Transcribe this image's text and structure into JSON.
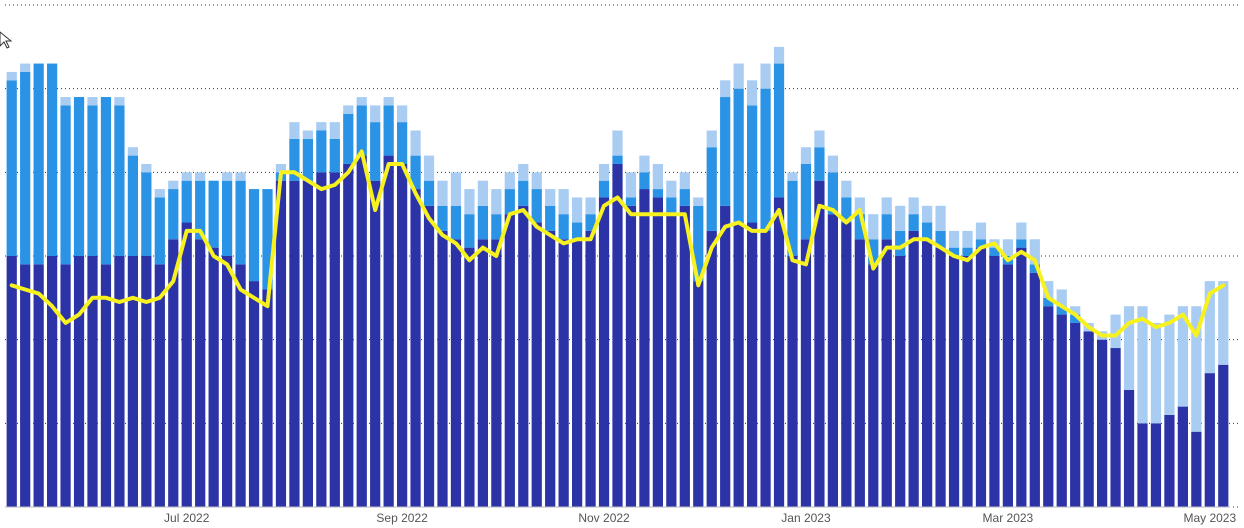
{
  "chart_data": {
    "type": "bar",
    "stacked": true,
    "categories": [
      null,
      null,
      null,
      null,
      null,
      null,
      null,
      null,
      null,
      null,
      null,
      null,
      null,
      "Jul 2022",
      null,
      null,
      null,
      null,
      null,
      null,
      null,
      null,
      null,
      null,
      null,
      null,
      null,
      null,
      null,
      "Sep 2022",
      null,
      null,
      null,
      null,
      null,
      null,
      null,
      null,
      null,
      null,
      null,
      null,
      null,
      null,
      "Nov 2022",
      null,
      null,
      null,
      null,
      null,
      null,
      null,
      null,
      null,
      null,
      null,
      null,
      null,
      null,
      "Jan 2023",
      null,
      null,
      null,
      null,
      null,
      null,
      null,
      null,
      null,
      null,
      null,
      null,
      null,
      null,
      "Mar 2023",
      null,
      null,
      null,
      null,
      null,
      null,
      null,
      null,
      null,
      null,
      null,
      null,
      null,
      null,
      "May 2023",
      null
    ],
    "series": [
      {
        "color": "#2c33a6",
        "values": [
          3.0,
          2.9,
          2.9,
          3.0,
          2.9,
          3.0,
          3.0,
          2.9,
          3.0,
          3.0,
          3.0,
          2.9,
          3.2,
          3.4,
          3.2,
          3.1,
          3.0,
          2.9,
          2.7,
          2.6,
          3.9,
          3.9,
          3.9,
          4.0,
          4.0,
          4.1,
          4.2,
          3.9,
          4.2,
          4.1,
          3.8,
          3.6,
          3.3,
          3.2,
          3.1,
          3.2,
          3.2,
          3.5,
          3.6,
          3.4,
          3.3,
          3.2,
          3.2,
          3.3,
          3.7,
          4.1,
          3.6,
          3.8,
          3.7,
          3.5,
          3.6,
          2.7,
          3.3,
          3.6,
          3.4,
          3.4,
          3.3,
          3.7,
          3.0,
          3.2,
          3.9,
          3.5,
          3.4,
          3.2,
          2.9,
          3.2,
          3.0,
          3.3,
          3.2,
          3.1,
          3.0,
          3.0,
          3.1,
          3.0,
          2.9,
          3.1,
          2.8,
          2.4,
          2.3,
          2.2,
          2.1,
          2.0,
          1.9,
          1.4,
          1.0,
          1.0,
          1.1,
          1.2,
          0.9,
          1.6,
          1.7
        ]
      },
      {
        "color": "#2a93e6",
        "values": [
          2.1,
          2.3,
          2.4,
          2.3,
          1.9,
          1.9,
          1.8,
          2.0,
          1.8,
          1.2,
          1.0,
          0.8,
          0.6,
          0.5,
          0.7,
          0.8,
          0.9,
          1.0,
          1.1,
          1.2,
          0.1,
          0.5,
          0.5,
          0.5,
          0.4,
          0.6,
          0.6,
          0.7,
          0.6,
          0.5,
          0.4,
          0.3,
          0.3,
          0.4,
          0.4,
          0.4,
          0.3,
          0.3,
          0.3,
          0.4,
          0.3,
          0.3,
          0.2,
          0.2,
          0.2,
          0.1,
          0.1,
          0.2,
          0.1,
          0.2,
          0.2,
          0.9,
          1.0,
          1.3,
          1.6,
          1.4,
          1.7,
          1.6,
          0.9,
          0.9,
          0.4,
          0.5,
          0.3,
          0.3,
          0.3,
          0.3,
          0.3,
          0.2,
          0.2,
          0.2,
          0.1,
          0.1,
          0.1,
          0.1,
          0.1,
          0.1,
          0.1,
          0.1,
          0.1,
          0.1,
          0.0,
          0.0,
          0.0,
          0.0,
          0.0,
          0.0,
          0.0,
          0.0,
          0.0,
          0.0,
          0.0
        ]
      },
      {
        "color": "#a9cdf2",
        "values": [
          0.1,
          0.1,
          0.0,
          0.0,
          0.1,
          0.0,
          0.1,
          0.0,
          0.1,
          0.1,
          0.1,
          0.1,
          0.1,
          0.1,
          0.1,
          0.0,
          0.1,
          0.1,
          0.0,
          0.0,
          0.1,
          0.2,
          0.1,
          0.1,
          0.2,
          0.1,
          0.1,
          0.2,
          0.1,
          0.2,
          0.3,
          0.3,
          0.3,
          0.4,
          0.3,
          0.3,
          0.3,
          0.2,
          0.2,
          0.2,
          0.2,
          0.3,
          0.3,
          0.2,
          0.2,
          0.3,
          0.3,
          0.2,
          0.3,
          0.2,
          0.2,
          0.1,
          0.2,
          0.2,
          0.3,
          0.3,
          0.3,
          0.2,
          0.1,
          0.2,
          0.2,
          0.2,
          0.2,
          0.2,
          0.3,
          0.2,
          0.3,
          0.2,
          0.2,
          0.3,
          0.2,
          0.2,
          0.2,
          0.1,
          0.2,
          0.2,
          0.3,
          0.2,
          0.2,
          0.1,
          0.1,
          0.1,
          0.4,
          1.0,
          1.4,
          1.2,
          1.2,
          1.2,
          1.5,
          1.1,
          1.0
        ]
      }
    ],
    "line": {
      "color": "#f7f21f",
      "values": [
        2.65,
        2.6,
        2.55,
        2.4,
        2.2,
        2.3,
        2.5,
        2.5,
        2.45,
        2.5,
        2.45,
        2.5,
        2.7,
        3.3,
        3.3,
        3.0,
        2.9,
        2.6,
        2.5,
        2.4,
        4.0,
        4.0,
        3.9,
        3.8,
        3.85,
        4.0,
        4.25,
        3.55,
        4.1,
        4.1,
        3.75,
        3.45,
        3.25,
        3.15,
        2.95,
        3.1,
        3.0,
        3.5,
        3.55,
        3.35,
        3.25,
        3.15,
        3.2,
        3.2,
        3.6,
        3.7,
        3.5,
        3.5,
        3.5,
        3.5,
        3.5,
        2.65,
        3.1,
        3.35,
        3.4,
        3.3,
        3.3,
        3.55,
        2.95,
        2.9,
        3.6,
        3.55,
        3.4,
        3.55,
        2.85,
        3.1,
        3.1,
        3.2,
        3.2,
        3.1,
        3.0,
        2.95,
        3.1,
        3.15,
        2.95,
        3.05,
        2.95,
        2.5,
        2.4,
        2.3,
        2.15,
        2.05,
        2.05,
        2.2,
        2.25,
        2.15,
        2.2,
        2.3,
        2.05,
        2.55,
        2.65
      ]
    },
    "ylim": [
      0,
      6
    ],
    "yticks": [
      0,
      1,
      2,
      3,
      4,
      5,
      6
    ],
    "grid": true
  }
}
